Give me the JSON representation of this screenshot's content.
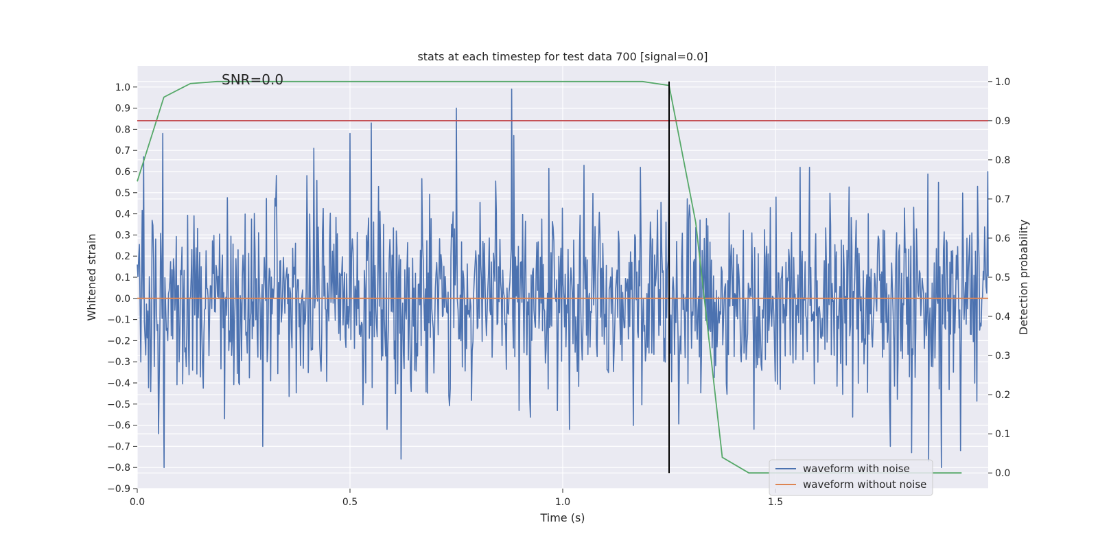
{
  "chart_data": {
    "type": "line",
    "title": "stats at each timestep for test data 700 [signal=0.0]",
    "xlabel": "Time (s)",
    "ylabel": "Whitened strain",
    "y2label": "Detection probability",
    "annotation": "SNR=0.0",
    "xlim": [
      0.0,
      2.0
    ],
    "ylim": [
      -0.9,
      1.1
    ],
    "y2lim": [
      -0.04,
      1.04
    ],
    "xticks": [
      0.0,
      0.5,
      1.0,
      1.5
    ],
    "xtick_labels": [
      "0.0",
      "0.5",
      "1.0",
      "1.5"
    ],
    "yticks": [
      1.0,
      0.9,
      0.8,
      0.7,
      0.6,
      0.5,
      0.4,
      0.3,
      0.2,
      0.1,
      0.0,
      -0.1,
      -0.2,
      -0.3,
      -0.4,
      -0.5,
      -0.6,
      -0.7,
      -0.8,
      -0.9
    ],
    "ytick_labels": [
      "1.0",
      "0.9",
      "0.8",
      "0.7",
      "0.6",
      "0.5",
      "0.4",
      "0.3",
      "0.2",
      "0.1",
      "0.0",
      "−0.1",
      "−0.2",
      "−0.3",
      "−0.4",
      "−0.5",
      "−0.6",
      "−0.7",
      "−0.8",
      "−0.9"
    ],
    "y2ticks": [
      1.0,
      0.9,
      0.8,
      0.7,
      0.6,
      0.5,
      0.4,
      0.3,
      0.2,
      0.1,
      0.0
    ],
    "y2tick_labels": [
      "1.0",
      "0.9",
      "0.8",
      "0.7",
      "0.6",
      "0.5",
      "0.4",
      "0.3",
      "0.2",
      "0.1",
      "0.0"
    ],
    "grid": true,
    "legend_position": "lower-right",
    "series": [
      {
        "name": "waveform with noise",
        "axis": "left",
        "color": "#4c72b0",
        "style": "dense noise",
        "x_range": [
          0.0,
          2.0
        ],
        "num_samples": 1200,
        "approx_std": 0.22,
        "peaks": [
          {
            "x": 0.015,
            "y": 0.67
          },
          {
            "x": 0.05,
            "y": -0.64
          },
          {
            "x": 0.06,
            "y": 0.78
          },
          {
            "x": 0.063,
            "y": -0.8
          },
          {
            "x": 0.295,
            "y": -0.7
          },
          {
            "x": 0.415,
            "y": 0.71
          },
          {
            "x": 0.5,
            "y": 0.78
          },
          {
            "x": 0.55,
            "y": 0.83
          },
          {
            "x": 0.62,
            "y": -0.76
          },
          {
            "x": 0.75,
            "y": 0.9
          },
          {
            "x": 0.88,
            "y": 0.99
          },
          {
            "x": 0.885,
            "y": 0.77
          },
          {
            "x": 1.05,
            "y": 0.63
          },
          {
            "x": 1.25,
            "y": 0.66
          },
          {
            "x": 1.58,
            "y": 0.62
          },
          {
            "x": 1.77,
            "y": -0.7
          },
          {
            "x": 1.82,
            "y": -0.73
          },
          {
            "x": 1.86,
            "y": -0.77
          },
          {
            "x": 1.89,
            "y": -0.8
          },
          {
            "x": 1.935,
            "y": -0.72
          },
          {
            "x": 1.975,
            "y": 0.53
          },
          {
            "x": 1.999,
            "y": 0.6
          }
        ]
      },
      {
        "name": "waveform without noise",
        "axis": "left",
        "color": "#dd8452",
        "x": [
          0.0,
          2.0
        ],
        "y": [
          0.0,
          0.0
        ]
      },
      {
        "axis": "right",
        "color": "#55a868",
        "x": [
          0.0,
          0.0625,
          0.125,
          0.1875,
          0.25,
          1.1875,
          1.25,
          1.3125,
          1.375,
          1.4375,
          1.9375
        ],
        "y": [
          0.745,
          0.96,
          0.995,
          1.0,
          1.0,
          1.0,
          0.99,
          0.64,
          0.04,
          0.0,
          0.0
        ]
      },
      {
        "axis": "right",
        "color": "#c44e52",
        "x": [
          0.0,
          2.0
        ],
        "y": [
          0.9,
          0.9
        ]
      },
      {
        "axis": "right",
        "color": "#000000",
        "x": [
          1.25,
          1.25
        ],
        "y": [
          0.0,
          1.0
        ]
      }
    ]
  }
}
